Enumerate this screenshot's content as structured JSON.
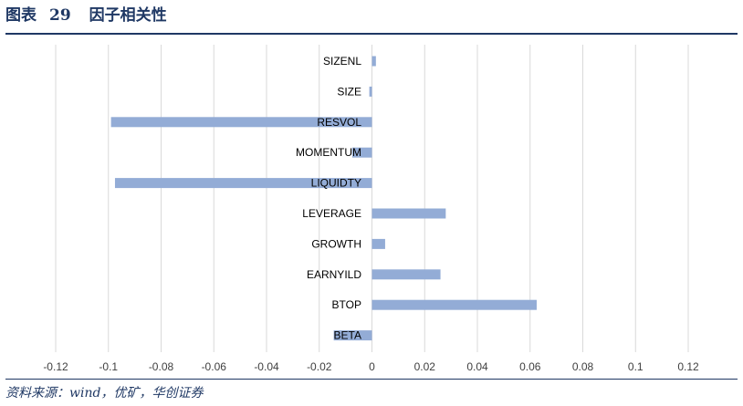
{
  "figure": {
    "label": "图表",
    "number": "29",
    "title": "因子相关性"
  },
  "source": "资料来源：wind，优矿，华创证券",
  "colors": {
    "bar": "#93acd6",
    "grid": "#d9d9d9",
    "text": "#000000",
    "tick": "#404040",
    "heading": "#1f3864"
  },
  "chart_data": {
    "type": "bar",
    "orientation": "horizontal",
    "title": "",
    "xlabel": "",
    "ylabel": "",
    "xlim": [
      -0.13,
      0.13
    ],
    "x_ticks": [
      -0.12,
      -0.1,
      -0.08,
      -0.06,
      -0.04,
      -0.02,
      0,
      0.02,
      0.04,
      0.06,
      0.08,
      0.1,
      0.12
    ],
    "x_tick_labels": [
      "-0.12",
      "-0.1",
      "-0.08",
      "-0.06",
      "-0.04",
      "-0.02",
      "0",
      "0.02",
      "0.04",
      "0.06",
      "0.08",
      "0.1",
      "0.12"
    ],
    "grid": true,
    "legend": "none",
    "categories": [
      "SIZENL",
      "SIZE",
      "RESVOL",
      "MOMENTUM",
      "LIQUIDTY",
      "LEVERAGE",
      "GROWTH",
      "EARNYILD",
      "BTOP",
      "BETA"
    ],
    "values": [
      0.0015,
      -0.001,
      -0.099,
      -0.0075,
      -0.0975,
      0.028,
      0.005,
      0.026,
      0.0625,
      -0.0145
    ]
  }
}
